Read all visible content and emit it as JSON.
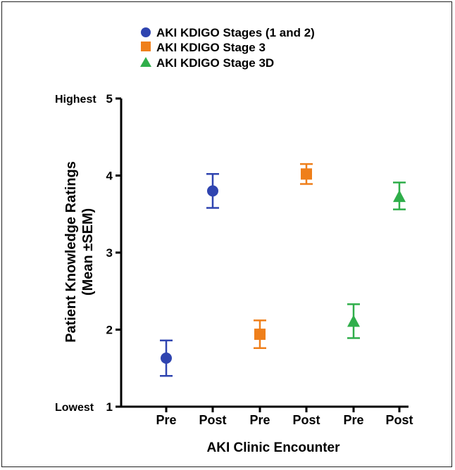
{
  "chart_data": {
    "type": "scatter",
    "title": "",
    "xlabel": "AKI Clinic Encounter",
    "ylabel": "Patient Knowledge Ratings",
    "ylabel_sub": "(Mean ±SEM)",
    "ylim": [
      1,
      5
    ],
    "y_ticks": [
      "1",
      "2",
      "3",
      "4",
      "5"
    ],
    "y_end_labels": {
      "top": "Highest",
      "bottom": "Lowest"
    },
    "x_tick_labels": [
      "Pre",
      "Post",
      "Pre",
      "Post",
      "Pre",
      "Post"
    ],
    "legend_position": "top-center",
    "grid": false,
    "series": [
      {
        "name": "AKI KDIGO Stages (1 and 2)",
        "color": "#2f44b0",
        "marker": "circle",
        "points": [
          {
            "x": "Pre",
            "y": 1.63,
            "err_low": 1.4,
            "err_high": 1.86
          },
          {
            "x": "Post",
            "y": 3.8,
            "err_low": 3.58,
            "err_high": 4.02
          }
        ]
      },
      {
        "name": "AKI KDIGO Stage 3",
        "color": "#ef7f1a",
        "marker": "square",
        "points": [
          {
            "x": "Pre",
            "y": 1.94,
            "err_low": 1.76,
            "err_high": 2.12
          },
          {
            "x": "Post",
            "y": 4.02,
            "err_low": 3.89,
            "err_high": 4.15
          }
        ]
      },
      {
        "name": "AKI KDIGO Stage 3D",
        "color": "#2fae4a",
        "marker": "triangle",
        "points": [
          {
            "x": "Pre",
            "y": 2.1,
            "err_low": 1.89,
            "err_high": 2.33
          },
          {
            "x": "Post",
            "y": 3.72,
            "err_low": 3.56,
            "err_high": 3.91
          }
        ]
      }
    ]
  }
}
